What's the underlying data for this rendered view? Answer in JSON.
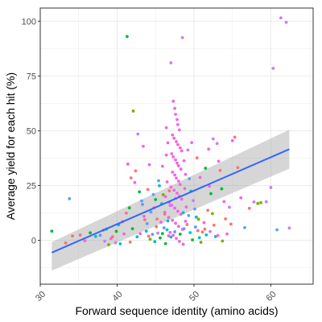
{
  "chart_data": {
    "type": "scatter",
    "title": "",
    "xlabel": "Forward sequence identity (amino acids)",
    "ylabel": "Average yield for each hit (%)",
    "xlim": [
      30,
      65.5
    ],
    "ylim": [
      -20,
      106
    ],
    "x_ticks": [
      30,
      40,
      50,
      60
    ],
    "y_ticks": [
      0,
      25,
      50,
      75,
      100
    ],
    "grid": true,
    "legend": "none",
    "colors": [
      "#F8766D",
      "#7CAE00",
      "#00BFC4",
      "#C77CFF",
      "#00BA38",
      "#F564E3",
      "#619CFF"
    ],
    "points": [
      [
        31.5,
        4.2,
        4
      ],
      [
        33.8,
        19,
        6
      ],
      [
        33.3,
        -1.2,
        0
      ],
      [
        34.2,
        2,
        0
      ],
      [
        35.2,
        2.4,
        0
      ],
      [
        35.8,
        -0.2,
        5
      ],
      [
        36.5,
        3.4,
        4
      ],
      [
        37.2,
        1.8,
        2
      ],
      [
        37.8,
        2.3,
        6
      ],
      [
        38.2,
        4.6,
        0
      ],
      [
        38.6,
        5.1,
        2
      ],
      [
        38.9,
        -2,
        1
      ],
      [
        39.4,
        1.6,
        0
      ],
      [
        39.8,
        -1.1,
        3
      ],
      [
        40.2,
        7.1,
        2
      ],
      [
        40.7,
        8.5,
        5
      ],
      [
        41.2,
        12.4,
        0
      ],
      [
        41.6,
        14.8,
        4
      ],
      [
        41.3,
        93,
        4
      ],
      [
        42.1,
        59,
        1
      ],
      [
        41.4,
        34.8,
        5
      ],
      [
        41.8,
        28.5,
        0
      ],
      [
        42.7,
        48.5,
        3
      ],
      [
        42.3,
        26.4,
        5
      ],
      [
        42.9,
        22.1,
        4
      ],
      [
        43.2,
        18,
        6
      ],
      [
        43.5,
        11,
        5
      ],
      [
        43.8,
        4.2,
        2
      ],
      [
        44.1,
        1.9,
        0
      ],
      [
        44.3,
        0.5,
        1
      ],
      [
        44.6,
        2.7,
        6
      ],
      [
        44.9,
        -0.6,
        2
      ],
      [
        45.1,
        6.2,
        0
      ],
      [
        45.3,
        3.3,
        3
      ],
      [
        45.6,
        1.1,
        4
      ],
      [
        45.7,
        8.3,
        5
      ],
      [
        46.0,
        20.8,
        1
      ],
      [
        46.2,
        12,
        0
      ],
      [
        46.5,
        4.8,
        2
      ],
      [
        46.7,
        2.1,
        5
      ],
      [
        46.9,
        15.9,
        3
      ],
      [
        47.0,
        81,
        3
      ],
      [
        48.5,
        92.5,
        3
      ],
      [
        47.3,
        63.5,
        5
      ],
      [
        47.5,
        60.2,
        5
      ],
      [
        47.6,
        57.5,
        5
      ],
      [
        47.8,
        55.1,
        5
      ],
      [
        47.9,
        52.8,
        5
      ],
      [
        48.1,
        50.4,
        5
      ],
      [
        47.2,
        48.1,
        5
      ],
      [
        47.4,
        46.6,
        5
      ],
      [
        47.7,
        45.0,
        5
      ],
      [
        47.9,
        43.7,
        5
      ],
      [
        48.2,
        42.2,
        5
      ],
      [
        48.4,
        40.8,
        5
      ],
      [
        47.1,
        39.5,
        5
      ],
      [
        47.3,
        38.1,
        5
      ],
      [
        47.6,
        36.7,
        5
      ],
      [
        47.8,
        35.2,
        5
      ],
      [
        48.0,
        34.0,
        5
      ],
      [
        48.3,
        32.5,
        5
      ],
      [
        47.2,
        31.1,
        5
      ],
      [
        47.5,
        29.8,
        5
      ],
      [
        47.7,
        28.4,
        5
      ],
      [
        48.0,
        27.0,
        5
      ],
      [
        48.2,
        25.5,
        5
      ],
      [
        47.0,
        24.3,
        5
      ],
      [
        47.4,
        22.9,
        5
      ],
      [
        47.8,
        21.5,
        5
      ],
      [
        48.1,
        20.2,
        5
      ],
      [
        48.4,
        18.8,
        5
      ],
      [
        46.8,
        17.4,
        5
      ],
      [
        47.1,
        16.0,
        5
      ],
      [
        47.5,
        14.7,
        5
      ],
      [
        47.9,
        13.3,
        5
      ],
      [
        48.3,
        11.9,
        5
      ],
      [
        46.7,
        10.5,
        5
      ],
      [
        47.2,
        9.1,
        5
      ],
      [
        47.6,
        7.8,
        5
      ],
      [
        48.0,
        6.4,
        5
      ],
      [
        48.5,
        5.0,
        5
      ],
      [
        46.9,
        3.6,
        5
      ],
      [
        47.3,
        2.3,
        5
      ],
      [
        47.7,
        0.9,
        5
      ],
      [
        48.1,
        -0.5,
        5
      ],
      [
        48.6,
        -1.8,
        5
      ],
      [
        46.6,
        44.5,
        5
      ],
      [
        46.4,
        38.9,
        5
      ],
      [
        48.7,
        36.3,
        5
      ],
      [
        48.9,
        30.1,
        5
      ],
      [
        46.5,
        26.7,
        5
      ],
      [
        48.8,
        23.6,
        5
      ],
      [
        46.3,
        19.9,
        5
      ],
      [
        49.0,
        15.2,
        5
      ],
      [
        46.2,
        12.8,
        5
      ],
      [
        48.9,
        8.7,
        5
      ],
      [
        49.2,
        41.2,
        3
      ],
      [
        49.4,
        28.1,
        6
      ],
      [
        49.6,
        22.4,
        2
      ],
      [
        49.9,
        18.1,
        3
      ],
      [
        50.1,
        14.3,
        6
      ],
      [
        50.3,
        10.6,
        2
      ],
      [
        50.5,
        4.4,
        0
      ],
      [
        50.7,
        1.2,
        2
      ],
      [
        50.9,
        -0.9,
        1
      ],
      [
        51.1,
        3.8,
        0
      ],
      [
        51.3,
        8.1,
        5
      ],
      [
        51.6,
        2.5,
        2
      ],
      [
        51.8,
        13.7,
        0
      ],
      [
        52.0,
        24.7,
        5
      ],
      [
        52.2,
        21.3,
        4
      ],
      [
        52.4,
        12.2,
        1
      ],
      [
        52.6,
        6.9,
        0
      ],
      [
        52.8,
        1.7,
        2
      ],
      [
        53.0,
        44.2,
        3
      ],
      [
        53.2,
        36.1,
        5
      ],
      [
        53.4,
        31.9,
        0
      ],
      [
        53.6,
        23.5,
        4
      ],
      [
        53.9,
        17.7,
        5
      ],
      [
        54.1,
        9.8,
        0
      ],
      [
        54.3,
        2.9,
        5
      ],
      [
        54.6,
        15.1,
        3
      ],
      [
        55.0,
        45.5,
        5
      ],
      [
        55.3,
        47.1,
        0
      ],
      [
        55.7,
        33.2,
        0
      ],
      [
        56.1,
        19.4,
        5
      ],
      [
        56.6,
        5.8,
        6
      ],
      [
        57.2,
        14.6,
        0
      ],
      [
        57.8,
        17.5,
        3
      ],
      [
        58.3,
        16.8,
        1
      ],
      [
        58.7,
        17.2,
        1
      ],
      [
        59.4,
        17.6,
        3
      ],
      [
        60.0,
        24.1,
        3
      ],
      [
        60.3,
        78.5,
        3
      ],
      [
        60.8,
        4.8,
        6
      ],
      [
        61.3,
        101.5,
        3
      ],
      [
        62.0,
        99.5,
        3
      ],
      [
        62.4,
        5.6,
        3
      ],
      [
        43.9,
        7.6,
        6
      ],
      [
        44.4,
        12.9,
        6
      ],
      [
        45.0,
        18.6,
        4
      ],
      [
        45.5,
        24.9,
        2
      ],
      [
        45.9,
        3.1,
        4
      ],
      [
        46.3,
        -1.5,
        4
      ],
      [
        46.1,
        5.7,
        6
      ],
      [
        46.6,
        8.9,
        2
      ],
      [
        47.0,
        1.5,
        2
      ],
      [
        47.5,
        3.9,
        6
      ],
      [
        48.2,
        2.8,
        4
      ],
      [
        48.7,
        5.3,
        6
      ],
      [
        49.1,
        7.2,
        0
      ],
      [
        49.5,
        3.5,
        2
      ],
      [
        49.8,
        0.2,
        4
      ],
      [
        50.2,
        6.1,
        6
      ],
      [
        45.2,
        9.7,
        0
      ],
      [
        44.8,
        14.9,
        5
      ],
      [
        43.6,
        9.4,
        0
      ],
      [
        43.0,
        3.0,
        5
      ],
      [
        42.6,
        1.6,
        2
      ],
      [
        42.0,
        5.3,
        4
      ],
      [
        41.7,
        -0.8,
        0
      ],
      [
        40.9,
        2.9,
        5
      ],
      [
        40.4,
        -1.6,
        2
      ],
      [
        39.9,
        4.1,
        4
      ],
      [
        39.2,
        0.8,
        5
      ],
      [
        38.4,
        -0.4,
        3
      ],
      [
        44.7,
        20.9,
        6
      ],
      [
        45.8,
        16.7,
        2
      ],
      [
        46.8,
        22.6,
        0
      ],
      [
        47.6,
        19.1,
        3
      ],
      [
        48.6,
        12.6,
        2
      ],
      [
        49.3,
        11.3,
        6
      ],
      [
        50.6,
        9.6,
        1
      ],
      [
        51.4,
        5.1,
        0
      ],
      [
        52.1,
        4.0,
        3
      ],
      [
        53.1,
        2.2,
        5
      ],
      [
        53.7,
        -0.3,
        1
      ],
      [
        54.8,
        7.4,
        0
      ],
      [
        49.7,
        44.6,
        5
      ],
      [
        50.4,
        37.6,
        0
      ],
      [
        50.8,
        28.7,
        5
      ],
      [
        51.5,
        32.9,
        4
      ],
      [
        51.9,
        41.6,
        5
      ],
      [
        52.5,
        46.3,
        3
      ],
      [
        44.2,
        34.5,
        5
      ],
      [
        43.4,
        42.9,
        5
      ],
      [
        42.4,
        31.7,
        0
      ],
      [
        45.4,
        27.2,
        6
      ],
      [
        44.0,
        23.2,
        0
      ],
      [
        43.3,
        16.4,
        6
      ],
      [
        45.9,
        33.8,
        5
      ],
      [
        46.4,
        51.4,
        5
      ]
    ],
    "trend": {
      "x": [
        31.5,
        62.4
      ],
      "y": [
        -5.6,
        41.6
      ],
      "ci_upper": [
        -0.8,
        50.5
      ],
      "ci_lower": [
        -13.8,
        32.7
      ]
    }
  }
}
